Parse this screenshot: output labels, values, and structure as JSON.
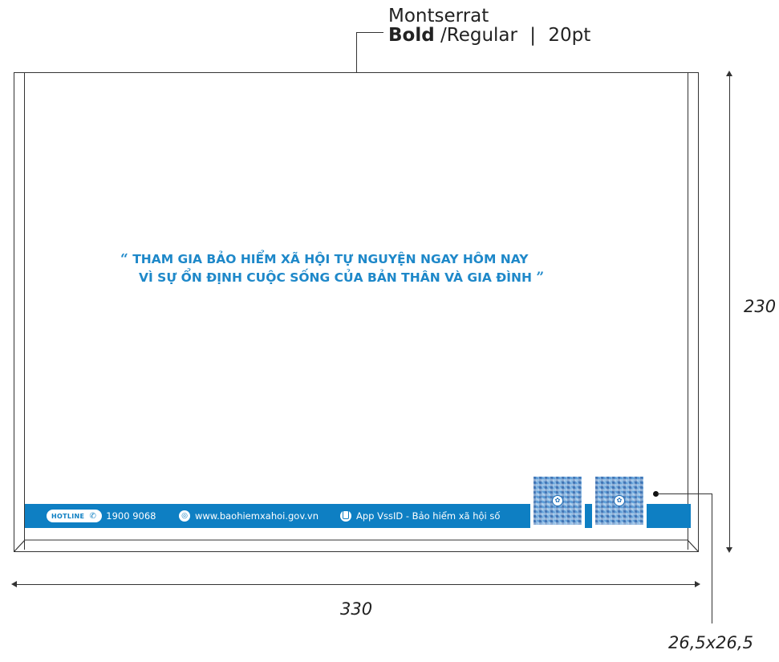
{
  "font_note": {
    "family": "Montserrat",
    "weight_bold": "Bold",
    "weight_rest": "/Regular",
    "separator": "|",
    "size": "20pt"
  },
  "slogan": {
    "open_quote": "“",
    "line1": "THAM GIA BẢO HIỂM XÃ HỘI TỰ NGUYỆN NGAY HÔM NAY",
    "line2": "VÌ SỰ ỔN ĐỊNH CUỘC SỐNG CỦA BẢN THÂN VÀ GIA ĐÌNH",
    "close_quote": "”",
    "color": "#1e88c9"
  },
  "footer": {
    "bar_color": "#0e7fc3",
    "hotline_badge": "HOTLINE",
    "phone_icon": "phone-icon",
    "phone_number": "1900 9068",
    "web_icon": "globe-icon",
    "website": "www.baohiemxahoi.gov.vn",
    "app_icon": "mobile-icon",
    "app_text": "App VssID - Bảo hiểm xã hội số"
  },
  "dimensions": {
    "height": "230",
    "width": "330",
    "qr_size": "26,5x26,5"
  }
}
